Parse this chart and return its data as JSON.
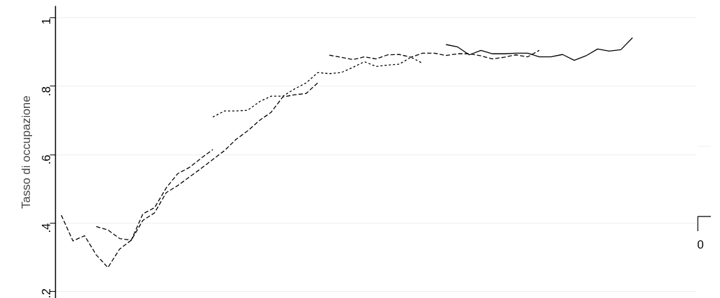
{
  "chart_data": [
    {
      "type": "line",
      "ylabel": "Tasso di occupazione",
      "categories": [
        null,
        null,
        null,
        null,
        null,
        null,
        null,
        null,
        null,
        null,
        null,
        null,
        null,
        null,
        null,
        null,
        null,
        null,
        null,
        null,
        null,
        null,
        null,
        null,
        null,
        null,
        null,
        null,
        null,
        null,
        null,
        null,
        null,
        null,
        null,
        null,
        null,
        null,
        null,
        null,
        null,
        null,
        null,
        null,
        null,
        null,
        null,
        null,
        null,
        null,
        null,
        null,
        null,
        null,
        null
      ],
      "series": [
        {
          "color": "#000000",
          "line_style": "dashed",
          "values": [
            0.423,
            0.348,
            0.363,
            0.307,
            0.27,
            0.324,
            0.35,
            0.408,
            0.43,
            0.489,
            0.51,
            0.535,
            0.56,
            0.586,
            0.612,
            0.645,
            0.67,
            0.7,
            0.724,
            0.769,
            0.775,
            0.779,
            0.81,
            null,
            null,
            null,
            null,
            null,
            null,
            null,
            null,
            null,
            null,
            null,
            null,
            null,
            null,
            null,
            null,
            null,
            null,
            null,
            null,
            null,
            null,
            null,
            null,
            null,
            null,
            null,
            null,
            null,
            null,
            null,
            null
          ]
        },
        {
          "color": "#000000",
          "line_style": "dashed",
          "values": [
            null,
            null,
            null,
            0.39,
            0.38,
            0.355,
            0.35,
            0.427,
            0.445,
            0.503,
            0.545,
            0.563,
            0.59,
            0.615,
            null,
            null,
            null,
            null,
            null,
            null,
            null,
            null,
            null,
            null,
            null,
            null,
            null,
            null,
            null,
            null,
            null,
            null,
            null,
            null,
            null,
            null,
            null,
            null,
            null,
            null,
            null,
            null,
            null,
            null,
            null,
            null,
            null,
            null,
            null,
            null,
            null,
            null,
            null,
            null,
            null
          ]
        },
        {
          "color": "#000000",
          "line_style": "dotted",
          "values": [
            null,
            null,
            null,
            null,
            null,
            null,
            null,
            null,
            null,
            null,
            null,
            null,
            null,
            0.71,
            0.728,
            0.728,
            0.73,
            0.755,
            0.771,
            0.771,
            0.792,
            0.81,
            0.84,
            0.837,
            0.84,
            0.855,
            0.872,
            0.858,
            0.862,
            0.865,
            0.885,
            0.867,
            null,
            null,
            null,
            null,
            null,
            null,
            null,
            null,
            null,
            null,
            null,
            null,
            null,
            null,
            null,
            null,
            null,
            null,
            null,
            null,
            null,
            null,
            null
          ]
        },
        {
          "color": "#000000",
          "line_style": "dashed",
          "values": [
            null,
            null,
            null,
            null,
            null,
            null,
            null,
            null,
            null,
            null,
            null,
            null,
            null,
            null,
            null,
            null,
            null,
            null,
            null,
            null,
            null,
            null,
            null,
            0.891,
            0.885,
            0.878,
            0.886,
            0.88,
            0.892,
            0.893,
            0.885,
            0.897,
            0.897,
            0.89,
            0.895,
            0.895,
            0.889,
            0.88,
            0.885,
            0.892,
            0.886,
            0.905,
            null,
            null,
            null,
            null,
            null,
            null,
            null,
            null,
            null,
            null,
            null,
            null,
            null
          ]
        },
        {
          "color": "#000000",
          "line_style": "solid",
          "values": [
            null,
            null,
            null,
            null,
            null,
            null,
            null,
            null,
            null,
            null,
            null,
            null,
            null,
            null,
            null,
            null,
            null,
            null,
            null,
            null,
            null,
            null,
            null,
            null,
            null,
            null,
            null,
            null,
            null,
            null,
            null,
            null,
            null,
            0.922,
            0.915,
            0.892,
            0.905,
            0.895,
            0.895,
            0.897,
            0.897,
            0.886,
            0.886,
            0.893,
            0.876,
            0.889,
            0.909,
            0.903,
            0.907,
            0.942,
            null,
            null,
            null,
            null,
            null
          ]
        }
      ],
      "ylim": [
        0.18,
        1.035
      ],
      "yticks": [
        {
          "value": 0.2,
          "label": ".2"
        },
        {
          "value": 0.4,
          "label": ".4"
        },
        {
          "value": 0.6,
          "label": ".6"
        },
        {
          "value": 0.8,
          "label": ".8"
        },
        {
          "value": 1,
          "label": "1"
        }
      ],
      "grid": "y",
      "tick_labels": "y"
    },
    {
      "type": "other",
      "annotations": [
        "0"
      ]
    }
  ]
}
